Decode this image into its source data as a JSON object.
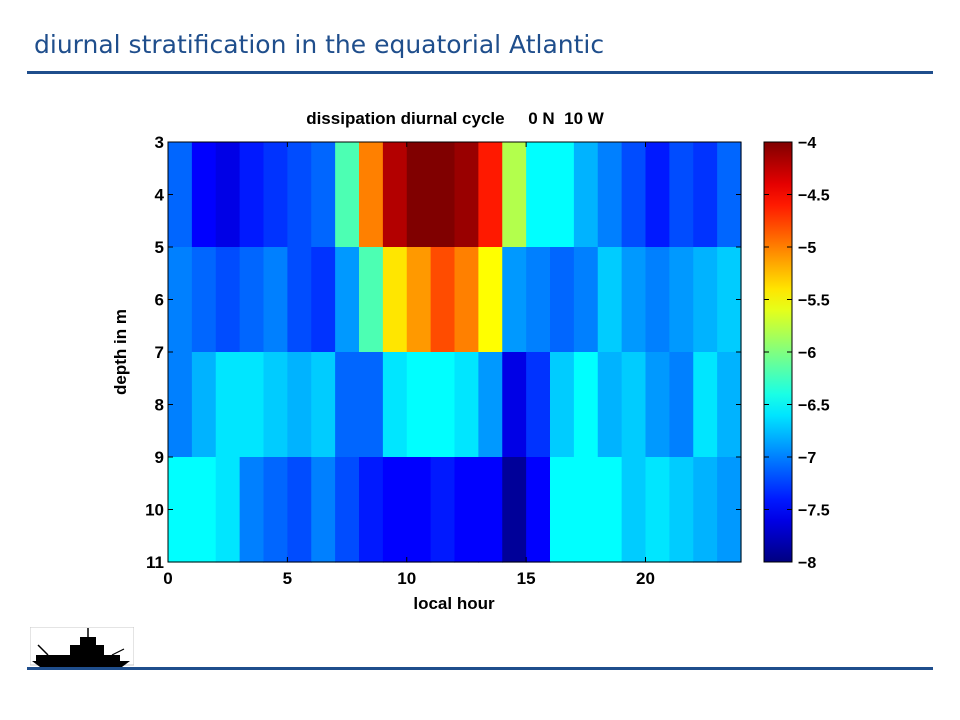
{
  "slide": {
    "title": "diurnal stratification in the equatorial Atlantic"
  },
  "logo": {
    "name": "research-vessel-logo"
  },
  "colors": {
    "title": "#1f4e8c",
    "rule": "#1f4e8c"
  },
  "chart_data": {
    "type": "heatmap",
    "title": "dissipation diurnal cycle     0 N  10 W",
    "xlabel": "local hour",
    "ylabel": "depth in m",
    "xlim": [
      0,
      24
    ],
    "ylim": [
      3,
      11
    ],
    "y_reversed": true,
    "x_ticks": [
      0,
      5,
      10,
      15,
      20
    ],
    "y_ticks": [
      3,
      4,
      5,
      6,
      7,
      8,
      9,
      10,
      11
    ],
    "x_edges": [
      0,
      1,
      2,
      3,
      4,
      5,
      6,
      7,
      8,
      9,
      10,
      11,
      12,
      13,
      14,
      15,
      16,
      17,
      18,
      19,
      20,
      21,
      22,
      23,
      24
    ],
    "depth_bands": [
      [
        3,
        5
      ],
      [
        5,
        7
      ],
      [
        7,
        9
      ],
      [
        9,
        11
      ]
    ],
    "colormap": "jet",
    "clim": [
      -8,
      -4
    ],
    "colorbar_ticks": [
      -4,
      -4.5,
      -5,
      -5.5,
      -6,
      -6.5,
      -7,
      -7.5,
      -8
    ],
    "colorbar_tick_labels": [
      "−4",
      "−4.5",
      "−5",
      "−5.5",
      "−6",
      "−6.5",
      "−7",
      "−7.5",
      "−8"
    ],
    "values": [
      [
        -7.1,
        -7.5,
        -7.6,
        -7.4,
        -7.3,
        -7.2,
        -7.1,
        -6.2,
        -5.0,
        -4.2,
        -4.0,
        -4.0,
        -4.1,
        -4.6,
        -5.8,
        -6.5,
        -6.5,
        -6.8,
        -7.0,
        -7.2,
        -7.4,
        -7.2,
        -7.3,
        -7.1
      ],
      [
        -7.0,
        -7.1,
        -7.2,
        -7.1,
        -7.0,
        -7.2,
        -7.3,
        -6.9,
        -6.2,
        -5.4,
        -5.1,
        -4.8,
        -5.0,
        -5.5,
        -6.9,
        -7.0,
        -7.1,
        -7.0,
        -6.7,
        -6.9,
        -7.0,
        -6.9,
        -6.8,
        -6.7
      ],
      [
        -7.0,
        -6.8,
        -6.6,
        -6.6,
        -6.7,
        -6.8,
        -6.7,
        -7.1,
        -7.1,
        -6.6,
        -6.5,
        -6.5,
        -6.6,
        -6.9,
        -7.6,
        -7.3,
        -6.7,
        -6.5,
        -6.8,
        -6.7,
        -6.9,
        -7.0,
        -6.6,
        -6.8
      ],
      [
        -6.5,
        -6.5,
        -6.6,
        -7.0,
        -7.1,
        -7.2,
        -7.0,
        -7.2,
        -7.4,
        -7.5,
        -7.5,
        -7.4,
        -7.5,
        -7.5,
        -7.9,
        -7.5,
        -6.5,
        -6.5,
        -6.5,
        -6.7,
        -6.6,
        -6.7,
        -6.8,
        -6.9
      ]
    ]
  }
}
